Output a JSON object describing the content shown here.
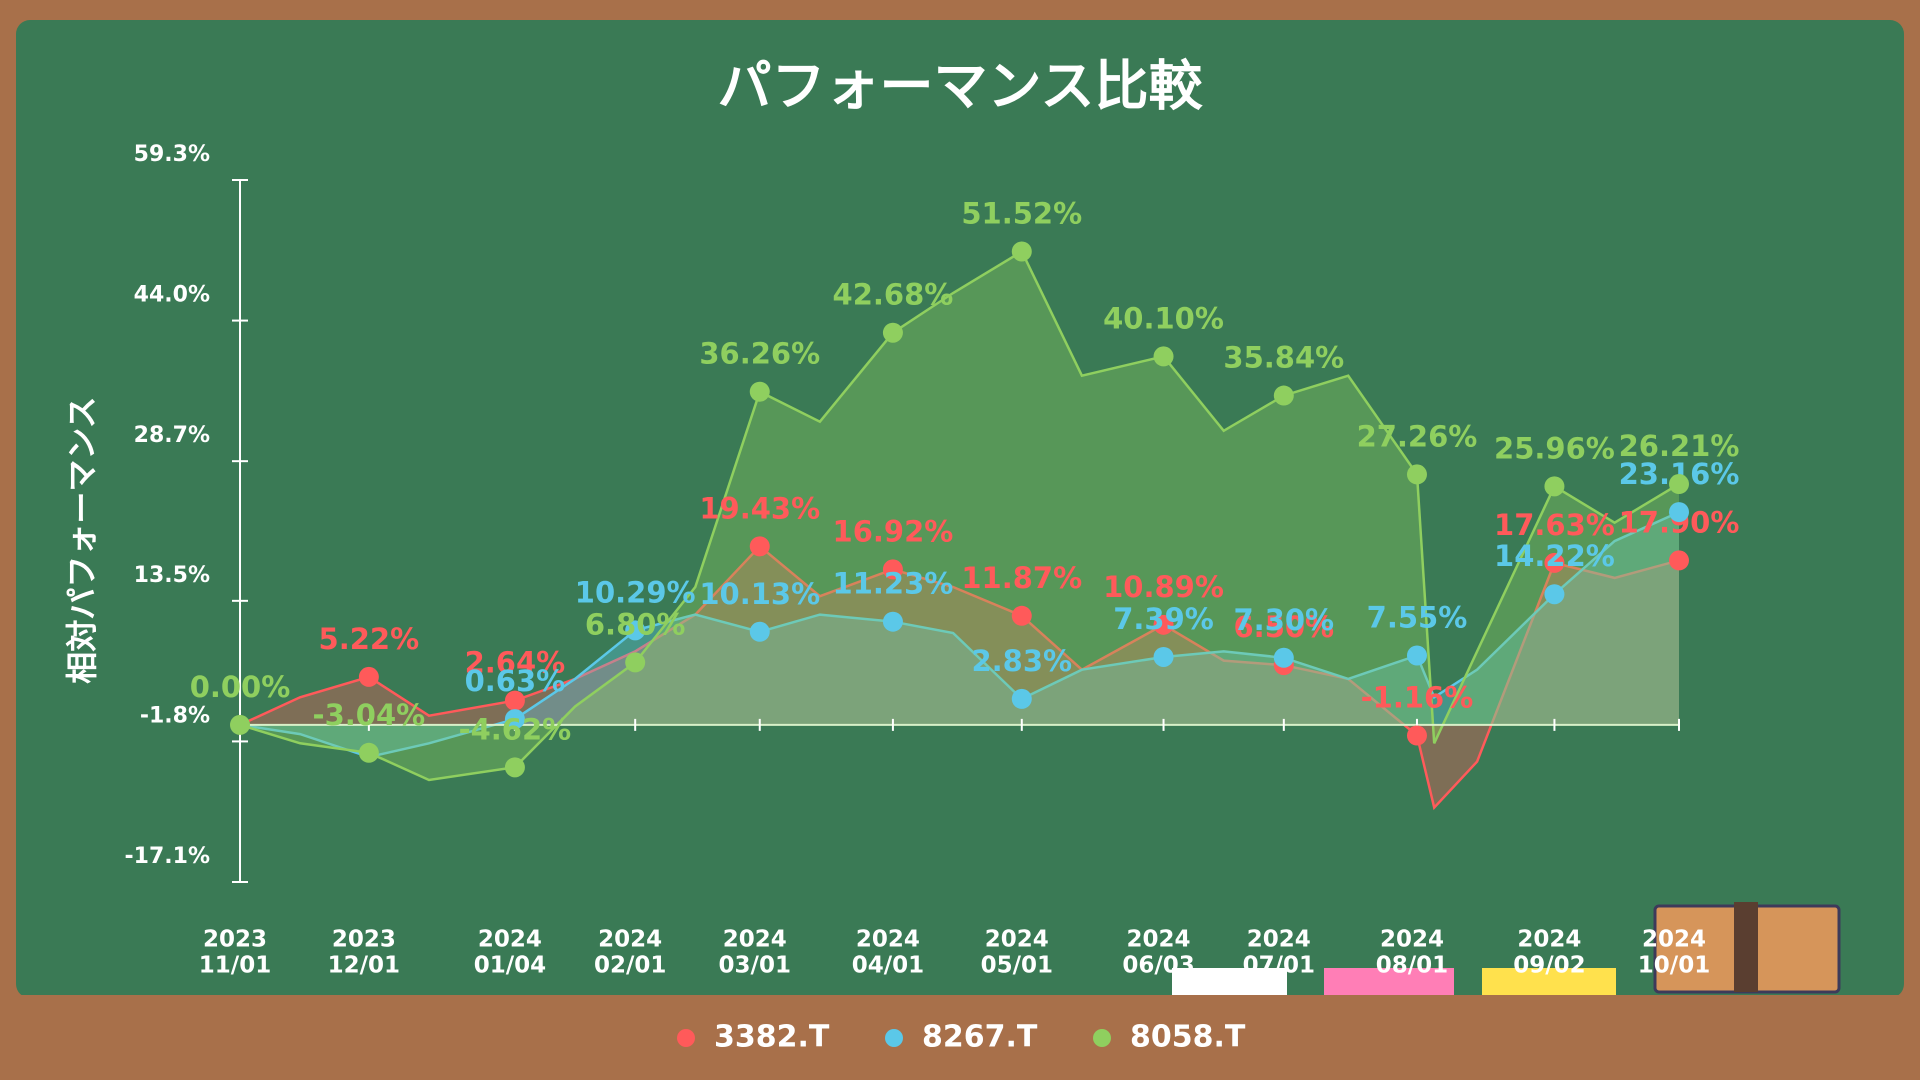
{
  "chart_data": {
    "type": "area",
    "title": "パフォーマンス比較",
    "ylabel": "相対パフォーマンス",
    "x": [
      "2023-11-01",
      "2023-11-15",
      "2023-12-01",
      "2023-12-15",
      "2024-01-04",
      "2024-01-18",
      "2024-02-01",
      "2024-02-15",
      "2024-03-01",
      "2024-03-15",
      "2024-04-01",
      "2024-04-15",
      "2024-05-01",
      "2024-05-15",
      "2024-06-03",
      "2024-06-17",
      "2024-07-01",
      "2024-07-16",
      "2024-08-01",
      "2024-08-05",
      "2024-08-15",
      "2024-09-02",
      "2024-09-16",
      "2024-10-01"
    ],
    "series": [
      {
        "name": "3382.T",
        "color": "#ff5a5a",
        "values": [
          0,
          3,
          5.22,
          1,
          2.64,
          5,
          8,
          12,
          19.43,
          14,
          16.92,
          15,
          11.87,
          6,
          10.89,
          7,
          6.5,
          5,
          -1.16,
          -9,
          -4,
          17.63,
          16,
          17.9
        ],
        "value_labels": [
          null,
          null,
          "5.22%",
          null,
          "2.64%",
          null,
          null,
          null,
          "19.43%",
          null,
          "16.92%",
          null,
          "11.87%",
          null,
          "10.89%",
          null,
          "6.50%",
          null,
          "-1.16%",
          null,
          null,
          "17.63%",
          null,
          "17.90%"
        ]
      },
      {
        "name": "8267.T",
        "color": "#5bc8e8",
        "values": [
          0,
          -1,
          -3.5,
          -2,
          0.63,
          5,
          10.29,
          12,
          10.13,
          12,
          11.23,
          10,
          2.83,
          6,
          7.39,
          8,
          7.3,
          5,
          7.55,
          3,
          6,
          14.22,
          20,
          23.16
        ],
        "value_labels": [
          null,
          null,
          null,
          null,
          "0.63%",
          null,
          "10.29%",
          null,
          "10.13%",
          null,
          "11.23%",
          null,
          "2.83%",
          null,
          "7.39%",
          null,
          "7.30%",
          null,
          "7.55%",
          null,
          null,
          "14.22%",
          null,
          "23.16%"
        ]
      },
      {
        "name": "8058.T",
        "color": "#8fcf5f",
        "values": [
          0,
          -2,
          -3.04,
          -6,
          -4.62,
          2,
          6.8,
          15,
          36.26,
          33,
          42.68,
          47,
          51.52,
          38,
          40.1,
          32,
          35.84,
          38,
          27.26,
          -2,
          8,
          25.96,
          22,
          26.21
        ],
        "value_labels": [
          "0.00%",
          null,
          "-3.04%",
          null,
          "-4.62%",
          null,
          "6.80%",
          null,
          "36.26%",
          null,
          "42.68%",
          null,
          "51.52%",
          null,
          "40.10%",
          null,
          "35.84%",
          null,
          "27.26%",
          null,
          null,
          "25.96%",
          null,
          "26.21%"
        ]
      }
    ],
    "ylim": [
      -17.1,
      59.3
    ],
    "yticks": [
      {
        "value": -17.1,
        "label": "-17.1%"
      },
      {
        "value": -1.8,
        "label": "-1.8%"
      },
      {
        "value": 13.5,
        "label": "13.5%"
      },
      {
        "value": 28.7,
        "label": "28.7%"
      },
      {
        "value": 44.0,
        "label": "44.0%"
      },
      {
        "value": 59.3,
        "label": "59.3%"
      }
    ],
    "xticks": [
      {
        "value": "2023-11-01",
        "label": [
          "2023",
          "11/01"
        ]
      },
      {
        "value": "2023-12-01",
        "label": [
          "2023",
          "12/01"
        ]
      },
      {
        "value": "2024-01-04",
        "label": [
          "2024",
          "01/04"
        ]
      },
      {
        "value": "2024-02-01",
        "label": [
          "2024",
          "02/01"
        ]
      },
      {
        "value": "2024-03-01",
        "label": [
          "2024",
          "03/01"
        ]
      },
      {
        "value": "2024-04-01",
        "label": [
          "2024",
          "04/01"
        ]
      },
      {
        "value": "2024-05-01",
        "label": [
          "2024",
          "05/01"
        ]
      },
      {
        "value": "2024-06-03",
        "label": [
          "2024",
          "06/03"
        ]
      },
      {
        "value": "2024-07-01",
        "label": [
          "2024",
          "07/01"
        ]
      },
      {
        "value": "2024-08-01",
        "label": [
          "2024",
          "08/01"
        ]
      },
      {
        "value": "2024-09-02",
        "label": [
          "2024",
          "09/02"
        ]
      },
      {
        "value": "2024-10-01",
        "label": [
          "2024",
          "10/01"
        ]
      }
    ]
  }
}
